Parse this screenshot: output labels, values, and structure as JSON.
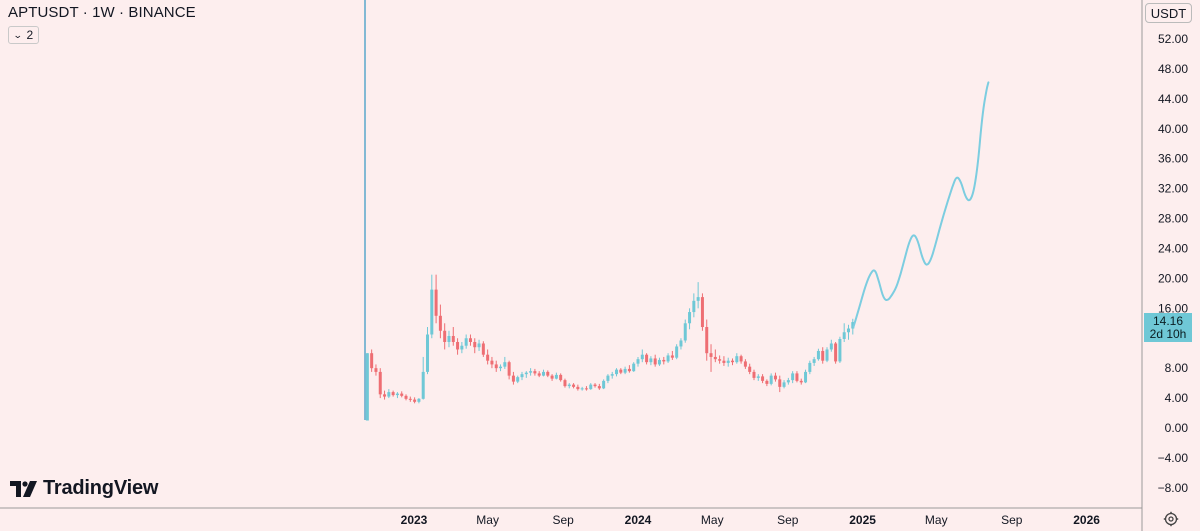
{
  "header": {
    "title": "APTUSDT · 1W · BINANCE",
    "indicator_count": "2"
  },
  "currency": "USDT",
  "last_price": {
    "value": "14.16",
    "countdown": "2d 10h"
  },
  "branding": {
    "logo_text": "TradingView"
  },
  "icons": {
    "settings": "settings-gear-icon",
    "chevron": "chevron-down-icon"
  },
  "colors": {
    "background": "#fdeeee",
    "up": "#6fc8d6",
    "down": "#ee6e73",
    "projection": "#7ccde0",
    "price_tag": "#6fc8d6",
    "vertical_line": "#5aa7cb"
  },
  "chart_data": {
    "type": "candlestick",
    "title": "APTUSDT · 1W · BINANCE",
    "y_range": [
      -10,
      55
    ],
    "y_ticks": [
      52,
      48,
      44,
      40,
      36,
      32,
      28,
      24,
      20,
      16,
      12,
      8,
      4,
      0,
      -4,
      -8
    ],
    "y_tick_labels": [
      "52.00",
      "48.00",
      "44.00",
      "40.00",
      "36.00",
      "32.00",
      "28.00",
      "24.00",
      "20.00",
      "16.00",
      "12.00",
      "8.00",
      "4.00",
      "0.00",
      "−4.00",
      "−8.00"
    ],
    "x_ticks": [
      {
        "date": "2023-01-01",
        "label": "2023",
        "bold": true
      },
      {
        "date": "2023-05-01",
        "label": "May",
        "bold": false
      },
      {
        "date": "2023-09-01",
        "label": "Sep",
        "bold": false
      },
      {
        "date": "2024-01-01",
        "label": "2024",
        "bold": true
      },
      {
        "date": "2024-05-01",
        "label": "May",
        "bold": false
      },
      {
        "date": "2024-09-01",
        "label": "Sep",
        "bold": false
      },
      {
        "date": "2025-01-01",
        "label": "2025",
        "bold": true
      },
      {
        "date": "2025-05-01",
        "label": "May",
        "bold": false
      },
      {
        "date": "2025-09-01",
        "label": "Sep",
        "bold": false
      },
      {
        "date": "2026-01-01",
        "label": "2026",
        "bold": true
      }
    ],
    "candles": [
      {
        "o": 1.0,
        "h": 10.0,
        "l": 1.0,
        "c": 10.0
      },
      {
        "o": 10.0,
        "h": 10.5,
        "l": 7.5,
        "c": 8.0
      },
      {
        "o": 8.0,
        "h": 8.5,
        "l": 7.0,
        "c": 7.5
      },
      {
        "o": 7.5,
        "h": 8.0,
        "l": 4.0,
        "c": 4.5
      },
      {
        "o": 4.5,
        "h": 5.0,
        "l": 3.8,
        "c": 4.2
      },
      {
        "o": 4.2,
        "h": 5.2,
        "l": 4.0,
        "c": 4.8
      },
      {
        "o": 4.8,
        "h": 5.0,
        "l": 4.2,
        "c": 4.4
      },
      {
        "o": 4.4,
        "h": 4.8,
        "l": 4.0,
        "c": 4.6
      },
      {
        "o": 4.6,
        "h": 4.9,
        "l": 4.1,
        "c": 4.3
      },
      {
        "o": 4.3,
        "h": 4.5,
        "l": 3.7,
        "c": 3.9
      },
      {
        "o": 3.9,
        "h": 4.2,
        "l": 3.5,
        "c": 3.8
      },
      {
        "o": 3.8,
        "h": 4.1,
        "l": 3.3,
        "c": 3.5
      },
      {
        "o": 3.5,
        "h": 4.0,
        "l": 3.3,
        "c": 3.9
      },
      {
        "o": 3.9,
        "h": 9.5,
        "l": 3.8,
        "c": 7.5
      },
      {
        "o": 7.5,
        "h": 13.5,
        "l": 7.2,
        "c": 12.5
      },
      {
        "o": 12.5,
        "h": 20.5,
        "l": 12.0,
        "c": 18.5
      },
      {
        "o": 18.5,
        "h": 20.5,
        "l": 14.0,
        "c": 15.0
      },
      {
        "o": 15.0,
        "h": 16.5,
        "l": 12.0,
        "c": 13.0
      },
      {
        "o": 13.0,
        "h": 14.0,
        "l": 10.5,
        "c": 11.5
      },
      {
        "o": 11.5,
        "h": 13.0,
        "l": 10.8,
        "c": 12.3
      },
      {
        "o": 12.3,
        "h": 13.5,
        "l": 11.0,
        "c": 11.5
      },
      {
        "o": 11.5,
        "h": 12.0,
        "l": 9.8,
        "c": 10.5
      },
      {
        "o": 10.5,
        "h": 11.5,
        "l": 10.0,
        "c": 11.0
      },
      {
        "o": 11.0,
        "h": 12.5,
        "l": 10.6,
        "c": 12.0
      },
      {
        "o": 12.0,
        "h": 12.5,
        "l": 11.0,
        "c": 11.5
      },
      {
        "o": 11.5,
        "h": 12.0,
        "l": 10.0,
        "c": 10.8
      },
      {
        "o": 10.8,
        "h": 11.8,
        "l": 10.3,
        "c": 11.3
      },
      {
        "o": 11.3,
        "h": 11.6,
        "l": 9.5,
        "c": 9.8
      },
      {
        "o": 9.8,
        "h": 10.5,
        "l": 8.5,
        "c": 9.0
      },
      {
        "o": 9.0,
        "h": 9.5,
        "l": 8.0,
        "c": 8.5
      },
      {
        "o": 8.5,
        "h": 9.0,
        "l": 7.5,
        "c": 8.0
      },
      {
        "o": 8.0,
        "h": 8.5,
        "l": 7.6,
        "c": 8.2
      },
      {
        "o": 8.2,
        "h": 9.5,
        "l": 7.9,
        "c": 8.8
      },
      {
        "o": 8.8,
        "h": 9.0,
        "l": 6.5,
        "c": 7.0
      },
      {
        "o": 7.0,
        "h": 7.5,
        "l": 5.8,
        "c": 6.2
      },
      {
        "o": 6.2,
        "h": 7.0,
        "l": 6.0,
        "c": 6.8
      },
      {
        "o": 6.8,
        "h": 7.5,
        "l": 6.4,
        "c": 7.2
      },
      {
        "o": 7.2,
        "h": 7.6,
        "l": 6.7,
        "c": 7.4
      },
      {
        "o": 7.4,
        "h": 8.0,
        "l": 7.0,
        "c": 7.6
      },
      {
        "o": 7.6,
        "h": 7.9,
        "l": 7.0,
        "c": 7.3
      },
      {
        "o": 7.3,
        "h": 7.6,
        "l": 6.8,
        "c": 7.0
      },
      {
        "o": 7.0,
        "h": 7.8,
        "l": 6.9,
        "c": 7.5
      },
      {
        "o": 7.5,
        "h": 7.7,
        "l": 6.8,
        "c": 7.0
      },
      {
        "o": 7.0,
        "h": 7.2,
        "l": 6.3,
        "c": 6.6
      },
      {
        "o": 6.6,
        "h": 7.4,
        "l": 6.5,
        "c": 7.1
      },
      {
        "o": 7.1,
        "h": 7.3,
        "l": 6.2,
        "c": 6.4
      },
      {
        "o": 6.4,
        "h": 6.6,
        "l": 5.4,
        "c": 5.6
      },
      {
        "o": 5.6,
        "h": 6.0,
        "l": 5.3,
        "c": 5.8
      },
      {
        "o": 5.8,
        "h": 6.0,
        "l": 5.3,
        "c": 5.5
      },
      {
        "o": 5.5,
        "h": 5.8,
        "l": 5.0,
        "c": 5.2
      },
      {
        "o": 5.2,
        "h": 5.5,
        "l": 5.0,
        "c": 5.3
      },
      {
        "o": 5.3,
        "h": 5.6,
        "l": 5.0,
        "c": 5.2
      },
      {
        "o": 5.2,
        "h": 6.0,
        "l": 5.1,
        "c": 5.8
      },
      {
        "o": 5.8,
        "h": 6.0,
        "l": 5.4,
        "c": 5.6
      },
      {
        "o": 5.6,
        "h": 5.9,
        "l": 5.1,
        "c": 5.3
      },
      {
        "o": 5.3,
        "h": 6.5,
        "l": 5.2,
        "c": 6.3
      },
      {
        "o": 6.3,
        "h": 7.2,
        "l": 6.0,
        "c": 7.0
      },
      {
        "o": 7.0,
        "h": 7.5,
        "l": 6.6,
        "c": 7.2
      },
      {
        "o": 7.2,
        "h": 8.0,
        "l": 6.9,
        "c": 7.8
      },
      {
        "o": 7.8,
        "h": 8.0,
        "l": 7.2,
        "c": 7.4
      },
      {
        "o": 7.4,
        "h": 8.2,
        "l": 7.2,
        "c": 7.9
      },
      {
        "o": 7.9,
        "h": 8.4,
        "l": 7.4,
        "c": 7.6
      },
      {
        "o": 7.6,
        "h": 8.8,
        "l": 7.5,
        "c": 8.6
      },
      {
        "o": 8.6,
        "h": 9.5,
        "l": 8.2,
        "c": 9.2
      },
      {
        "o": 9.2,
        "h": 10.5,
        "l": 8.8,
        "c": 9.8
      },
      {
        "o": 9.8,
        "h": 10.0,
        "l": 8.5,
        "c": 8.8
      },
      {
        "o": 8.8,
        "h": 9.6,
        "l": 8.4,
        "c": 9.3
      },
      {
        "o": 9.3,
        "h": 9.8,
        "l": 8.2,
        "c": 8.5
      },
      {
        "o": 8.5,
        "h": 9.4,
        "l": 8.3,
        "c": 9.1
      },
      {
        "o": 9.1,
        "h": 9.5,
        "l": 8.5,
        "c": 8.9
      },
      {
        "o": 8.9,
        "h": 10.0,
        "l": 8.7,
        "c": 9.7
      },
      {
        "o": 9.7,
        "h": 10.3,
        "l": 9.1,
        "c": 9.4
      },
      {
        "o": 9.4,
        "h": 11.2,
        "l": 9.2,
        "c": 10.9
      },
      {
        "o": 10.9,
        "h": 12.0,
        "l": 10.5,
        "c": 11.7
      },
      {
        "o": 11.7,
        "h": 14.5,
        "l": 11.4,
        "c": 14.0
      },
      {
        "o": 14.0,
        "h": 16.0,
        "l": 13.2,
        "c": 15.5
      },
      {
        "o": 15.5,
        "h": 18.0,
        "l": 14.8,
        "c": 17.0
      },
      {
        "o": 17.0,
        "h": 19.5,
        "l": 16.0,
        "c": 17.5
      },
      {
        "o": 17.5,
        "h": 18.0,
        "l": 13.0,
        "c": 13.5
      },
      {
        "o": 13.5,
        "h": 14.5,
        "l": 9.0,
        "c": 10.0
      },
      {
        "o": 10.0,
        "h": 11.2,
        "l": 7.5,
        "c": 9.5
      },
      {
        "o": 9.5,
        "h": 10.5,
        "l": 8.8,
        "c": 9.2
      },
      {
        "o": 9.2,
        "h": 9.7,
        "l": 8.6,
        "c": 9.0
      },
      {
        "o": 9.0,
        "h": 9.6,
        "l": 8.3,
        "c": 8.7
      },
      {
        "o": 8.7,
        "h": 9.4,
        "l": 8.2,
        "c": 9.0
      },
      {
        "o": 9.0,
        "h": 9.3,
        "l": 8.4,
        "c": 8.8
      },
      {
        "o": 8.8,
        "h": 10.0,
        "l": 8.6,
        "c": 9.6
      },
      {
        "o": 9.6,
        "h": 9.8,
        "l": 8.6,
        "c": 8.9
      },
      {
        "o": 8.9,
        "h": 9.2,
        "l": 7.9,
        "c": 8.2
      },
      {
        "o": 8.2,
        "h": 8.6,
        "l": 7.2,
        "c": 7.5
      },
      {
        "o": 7.5,
        "h": 7.8,
        "l": 6.4,
        "c": 6.7
      },
      {
        "o": 6.7,
        "h": 7.2,
        "l": 6.3,
        "c": 6.9
      },
      {
        "o": 6.9,
        "h": 7.2,
        "l": 6.0,
        "c": 6.3
      },
      {
        "o": 6.3,
        "h": 6.5,
        "l": 5.6,
        "c": 5.9
      },
      {
        "o": 5.9,
        "h": 7.3,
        "l": 5.7,
        "c": 7.0
      },
      {
        "o": 7.0,
        "h": 7.4,
        "l": 6.2,
        "c": 6.5
      },
      {
        "o": 6.5,
        "h": 7.0,
        "l": 4.8,
        "c": 5.5
      },
      {
        "o": 5.5,
        "h": 6.4,
        "l": 5.3,
        "c": 6.1
      },
      {
        "o": 6.1,
        "h": 6.7,
        "l": 5.8,
        "c": 6.4
      },
      {
        "o": 6.4,
        "h": 7.6,
        "l": 6.0,
        "c": 7.3
      },
      {
        "o": 7.3,
        "h": 7.6,
        "l": 6.1,
        "c": 6.3
      },
      {
        "o": 6.3,
        "h": 6.6,
        "l": 5.8,
        "c": 6.1
      },
      {
        "o": 6.1,
        "h": 7.8,
        "l": 6.0,
        "c": 7.5
      },
      {
        "o": 7.5,
        "h": 9.0,
        "l": 7.2,
        "c": 8.7
      },
      {
        "o": 8.7,
        "h": 9.5,
        "l": 8.3,
        "c": 9.2
      },
      {
        "o": 9.2,
        "h": 10.6,
        "l": 9.0,
        "c": 10.3
      },
      {
        "o": 10.3,
        "h": 10.8,
        "l": 8.6,
        "c": 9.0
      },
      {
        "o": 9.0,
        "h": 10.8,
        "l": 8.8,
        "c": 10.5
      },
      {
        "o": 10.5,
        "h": 11.8,
        "l": 10.2,
        "c": 11.3
      },
      {
        "o": 11.3,
        "h": 11.5,
        "l": 8.6,
        "c": 8.9
      },
      {
        "o": 8.9,
        "h": 12.2,
        "l": 8.7,
        "c": 11.9
      },
      {
        "o": 11.9,
        "h": 14.0,
        "l": 11.5,
        "c": 12.8
      },
      {
        "o": 12.8,
        "h": 13.8,
        "l": 11.8,
        "c": 13.3
      },
      {
        "o": 13.3,
        "h": 14.6,
        "l": 12.5,
        "c": 14.16
      }
    ],
    "projection_path": [
      {
        "date": "2024-12-17",
        "y": 13.5
      },
      {
        "date": "2024-12-24",
        "y": 15.4
      },
      {
        "date": "2024-12-31",
        "y": 17.4
      },
      {
        "date": "2025-01-07",
        "y": 19.3
      },
      {
        "date": "2025-01-14",
        "y": 20.7
      },
      {
        "date": "2025-01-21",
        "y": 21.3
      },
      {
        "date": "2025-01-28",
        "y": 19.5
      },
      {
        "date": "2025-02-04",
        "y": 17.3
      },
      {
        "date": "2025-02-11",
        "y": 17.0
      },
      {
        "date": "2025-02-18",
        "y": 17.8
      },
      {
        "date": "2025-02-25",
        "y": 18.8
      },
      {
        "date": "2025-03-04",
        "y": 20.6
      },
      {
        "date": "2025-03-11",
        "y": 22.8
      },
      {
        "date": "2025-03-18",
        "y": 24.9
      },
      {
        "date": "2025-03-25",
        "y": 26.0
      },
      {
        "date": "2025-04-01",
        "y": 25.1
      },
      {
        "date": "2025-04-08",
        "y": 22.8
      },
      {
        "date": "2025-04-15",
        "y": 21.6
      },
      {
        "date": "2025-04-22",
        "y": 22.4
      },
      {
        "date": "2025-04-29",
        "y": 24.3
      },
      {
        "date": "2025-05-06",
        "y": 26.5
      },
      {
        "date": "2025-05-13",
        "y": 28.5
      },
      {
        "date": "2025-05-20",
        "y": 30.4
      },
      {
        "date": "2025-05-27",
        "y": 32.2
      },
      {
        "date": "2025-06-03",
        "y": 33.7
      },
      {
        "date": "2025-06-10",
        "y": 33.0
      },
      {
        "date": "2025-06-17",
        "y": 31.0
      },
      {
        "date": "2025-06-24",
        "y": 30.2
      },
      {
        "date": "2025-07-01",
        "y": 31.5
      },
      {
        "date": "2025-07-08",
        "y": 35.3
      },
      {
        "date": "2025-07-15",
        "y": 41.8
      },
      {
        "date": "2025-07-22",
        "y": 45.3
      },
      {
        "date": "2025-07-25",
        "y": 46.2
      }
    ],
    "current_price": 14.16,
    "grid": false,
    "legend": "none"
  }
}
